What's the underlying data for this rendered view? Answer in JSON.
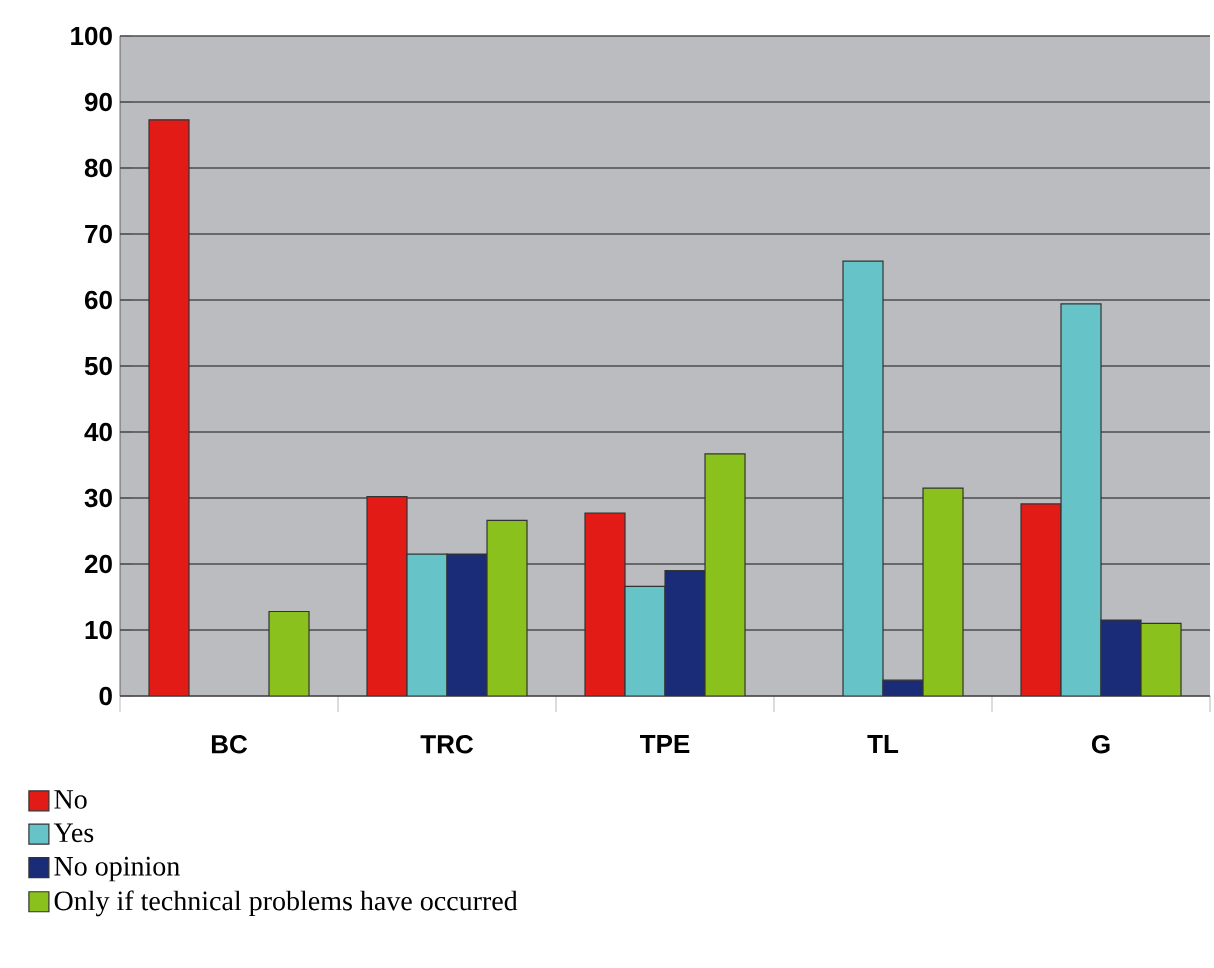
{
  "chart_data": {
    "type": "bar",
    "categories": [
      "BC",
      "TRC",
      "TPE",
      "TL",
      "G"
    ],
    "series": [
      {
        "name": "No",
        "color": "#e31b17",
        "values": [
          87.3,
          30.2,
          27.7,
          null,
          29.1
        ]
      },
      {
        "name": "Yes",
        "color": "#66c4c8",
        "values": [
          null,
          21.5,
          16.6,
          65.9,
          59.4
        ]
      },
      {
        "name": "No opinion",
        "color": "#1a2b78",
        "values": [
          null,
          21.5,
          19.0,
          2.4,
          11.5
        ]
      },
      {
        "name": "Only if technical problems have occurred",
        "color": "#8bc11c",
        "values": [
          12.8,
          26.6,
          36.7,
          31.5,
          11.0
        ]
      }
    ],
    "ylim": [
      0,
      100
    ],
    "yticks": [
      0,
      10,
      20,
      30,
      40,
      50,
      60,
      70,
      80,
      90,
      100
    ],
    "grid": "y",
    "legend": "bottom left"
  }
}
